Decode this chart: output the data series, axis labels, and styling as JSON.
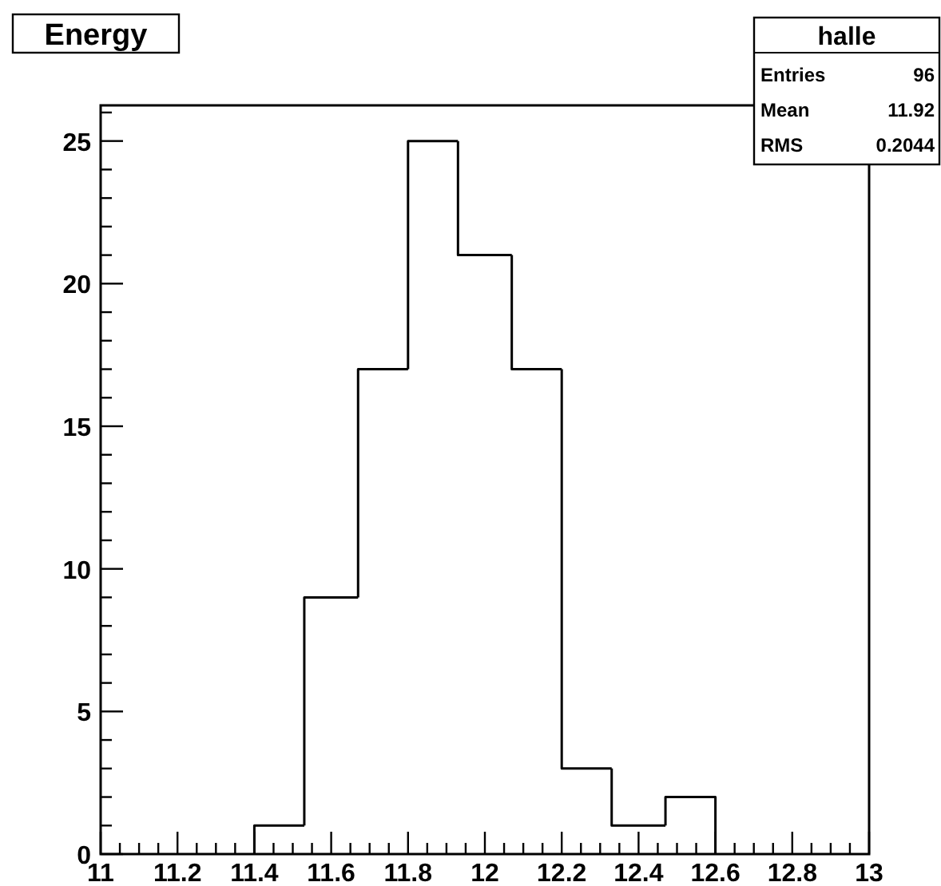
{
  "chart_data": {
    "type": "histogram",
    "title": "Energy",
    "color": "#000000",
    "bins": [
      11.4,
      11.53,
      11.67,
      11.8,
      11.93,
      12.07,
      12.2,
      12.33,
      12.47,
      12.6
    ],
    "values": [
      1,
      9,
      17,
      25,
      21,
      17,
      3,
      1,
      2
    ],
    "xlim": [
      11,
      13
    ],
    "ylim": [
      0,
      26.25
    ],
    "xticks": [
      11,
      {
        "value": 11.05,
        "label": null
      },
      {
        "value": 11.1,
        "label": null
      },
      {
        "value": 11.15,
        "label": null
      },
      11.2,
      {
        "value": 11.25,
        "label": null
      },
      {
        "value": 11.3,
        "label": null
      },
      {
        "value": 11.35,
        "label": null
      },
      11.4,
      {
        "value": 11.45,
        "label": null
      },
      {
        "value": 11.5,
        "label": null
      },
      {
        "value": 11.55,
        "label": null
      },
      11.6,
      {
        "value": 11.65,
        "label": null
      },
      {
        "value": 11.7,
        "label": null
      },
      {
        "value": 11.75,
        "label": null
      },
      11.8,
      {
        "value": 11.85,
        "label": null
      },
      {
        "value": 11.9,
        "label": null
      },
      {
        "value": 11.95,
        "label": null
      },
      12,
      {
        "value": 12.05,
        "label": null
      },
      {
        "value": 12.1,
        "label": null
      },
      {
        "value": 12.15,
        "label": null
      },
      12.2,
      {
        "value": 12.25,
        "label": null
      },
      {
        "value": 12.3,
        "label": null
      },
      {
        "value": 12.35,
        "label": null
      },
      12.4,
      {
        "value": 12.45,
        "label": null
      },
      {
        "value": 12.5,
        "label": null
      },
      {
        "value": 12.55,
        "label": null
      },
      12.6,
      {
        "value": 12.65,
        "label": null
      },
      {
        "value": 12.7,
        "label": null
      },
      {
        "value": 12.75,
        "label": null
      },
      12.8,
      {
        "value": 12.85,
        "label": null
      },
      {
        "value": 12.9,
        "label": null
      },
      {
        "value": 12.95,
        "label": null
      },
      13
    ],
    "yticks": [
      0,
      {
        "value": 1,
        "label": null
      },
      {
        "value": 2,
        "label": null
      },
      {
        "value": 3,
        "label": null
      },
      {
        "value": 4,
        "label": null
      },
      5,
      {
        "value": 6,
        "label": null
      },
      {
        "value": 7,
        "label": null
      },
      {
        "value": 8,
        "label": null
      },
      {
        "value": 9,
        "label": null
      },
      10,
      {
        "value": 11,
        "label": null
      },
      {
        "value": 12,
        "label": null
      },
      {
        "value": 13,
        "label": null
      },
      {
        "value": 14,
        "label": null
      },
      15,
      {
        "value": 16,
        "label": null
      },
      {
        "value": 17,
        "label": null
      },
      {
        "value": 18,
        "label": null
      },
      {
        "value": 19,
        "label": null
      },
      20,
      {
        "value": 21,
        "label": null
      },
      {
        "value": 22,
        "label": null
      },
      {
        "value": 23,
        "label": null
      },
      {
        "value": 24,
        "label": null
      },
      25,
      {
        "value": 26,
        "label": null
      }
    ],
    "annotations": [
      "halle",
      "Entries",
      "96",
      "Mean",
      "11.92",
      "RMS",
      "0.2044"
    ]
  }
}
